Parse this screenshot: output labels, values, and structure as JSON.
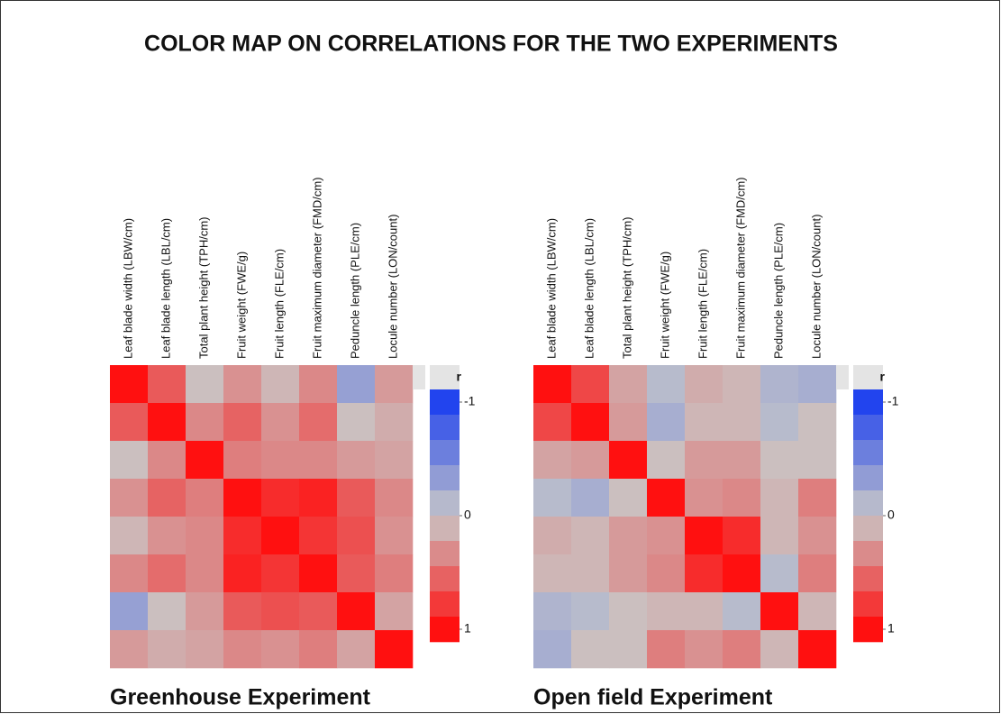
{
  "title": "COLOR MAP ON CORRELATIONS FOR THE TWO EXPERIMENTS",
  "chart_data": [
    {
      "type": "heatmap",
      "title": "Greenhouse Experiment",
      "categories": [
        "Leaf blade width (LBW/cm)",
        "Leaf blade length (LBL/cm)",
        "Total plant height (TPH/cm)",
        "Fruit weight (FWE/g)",
        "Fruit length (FLE/cm)",
        "Fruit maximum diameter (FMD/cm)",
        "Peduncle length (PLE/cm)",
        "Locule number (LON/count)"
      ],
      "values": [
        [
          1,
          0.6,
          0.05,
          0.3,
          0.1,
          0.35,
          -0.3,
          0.25
        ],
        [
          0.6,
          1,
          0.35,
          0.55,
          0.3,
          0.5,
          0.05,
          0.15
        ],
        [
          0.05,
          0.35,
          1,
          0.4,
          0.35,
          0.35,
          0.25,
          0.2
        ],
        [
          0.3,
          0.55,
          0.4,
          1,
          0.85,
          0.9,
          0.6,
          0.35
        ],
        [
          0.1,
          0.3,
          0.35,
          0.85,
          1,
          0.8,
          0.65,
          0.3
        ],
        [
          0.35,
          0.5,
          0.35,
          0.9,
          0.8,
          1,
          0.6,
          0.4
        ],
        [
          -0.3,
          0.05,
          0.25,
          0.6,
          0.65,
          0.6,
          1,
          0.2
        ],
        [
          0.25,
          0.15,
          0.2,
          0.35,
          0.3,
          0.4,
          0.2,
          1
        ]
      ],
      "colorbar_title": "r",
      "clim": [
        -1,
        1
      ],
      "cticks": [
        -1,
        0,
        1
      ],
      "colors": [
        "#2244ee",
        "#c8c8c8",
        "#ff1010"
      ]
    },
    {
      "type": "heatmap",
      "title": "Open field Experiment",
      "categories": [
        "Leaf blade width (LBW/cm)",
        "Leaf blade length (LBL/cm)",
        "Total plant height (TPH/cm)",
        "Fruit weight (FWE/g)",
        "Fruit length (FLE/cm)",
        "Fruit maximum diameter (FMD/cm)",
        "Peduncle length (PLE/cm)",
        "Locule number (LON/count)"
      ],
      "values": [
        [
          1,
          0.7,
          0.2,
          -0.1,
          0.15,
          0.1,
          -0.15,
          -0.2
        ],
        [
          0.7,
          1,
          0.25,
          -0.2,
          0.1,
          0.1,
          -0.1,
          0.05
        ],
        [
          0.2,
          0.25,
          1,
          0.05,
          0.25,
          0.25,
          0.05,
          0.05
        ],
        [
          -0.1,
          -0.2,
          0.05,
          1,
          0.3,
          0.35,
          0.1,
          0.4
        ],
        [
          0.15,
          0.1,
          0.25,
          0.3,
          1,
          0.85,
          0.1,
          0.3
        ],
        [
          0.1,
          0.1,
          0.25,
          0.35,
          0.85,
          1,
          -0.1,
          0.4
        ],
        [
          -0.15,
          -0.1,
          0.05,
          0.1,
          0.1,
          -0.1,
          1,
          0.1
        ],
        [
          -0.2,
          0.05,
          0.05,
          0.4,
          0.3,
          0.4,
          0.1,
          1
        ]
      ],
      "colorbar_title": "r",
      "clim": [
        -1,
        1
      ],
      "cticks": [
        -1,
        0,
        1
      ],
      "colors": [
        "#2244ee",
        "#c8c8c8",
        "#ff1010"
      ]
    }
  ]
}
